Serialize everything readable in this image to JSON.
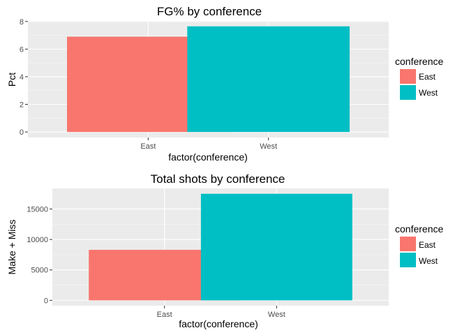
{
  "chart_data": [
    {
      "type": "bar",
      "title": "FG% by conference",
      "xlabel": "factor(conference)",
      "ylabel": "Pct",
      "categories": [
        "East",
        "West"
      ],
      "values": [
        6.9,
        7.65
      ],
      "colors": [
        "#F8766D",
        "#00BFC4"
      ],
      "ylim": [
        -0.4,
        8.04
      ],
      "yticks": [
        0,
        2,
        4,
        6,
        8
      ],
      "ytick_labels": [
        "0",
        "2",
        "4",
        "6",
        "8"
      ],
      "grid": true,
      "legend": {
        "title": "conference",
        "entries": [
          "East",
          "West"
        ],
        "position": "right"
      }
    },
    {
      "type": "bar",
      "title": "Total shots by conference",
      "xlabel": "factor(conference)",
      "ylabel": "Make + Miss",
      "categories": [
        "East",
        "West"
      ],
      "values": [
        8300,
        17500
      ],
      "colors": [
        "#F8766D",
        "#00BFC4"
      ],
      "ylim": [
        -875,
        18375
      ],
      "yticks": [
        0,
        5000,
        10000,
        15000
      ],
      "ytick_labels": [
        "0",
        "5000",
        "10000",
        "15000"
      ],
      "grid": true,
      "legend": {
        "title": "conference",
        "entries": [
          "East",
          "West"
        ],
        "position": "right"
      }
    }
  ]
}
